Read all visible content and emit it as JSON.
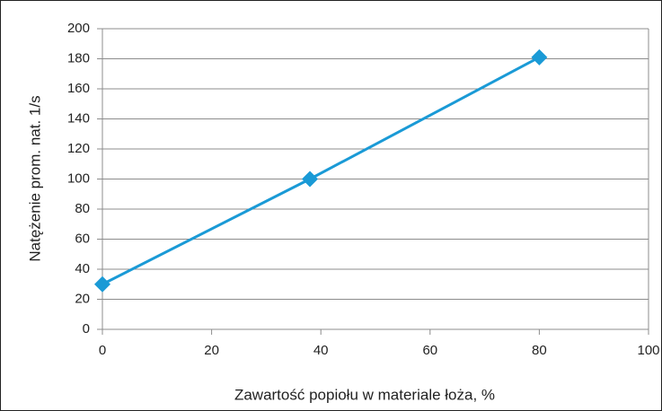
{
  "chart_data": {
    "type": "line",
    "x_label": "Zawartość popiołu w materiale łoża, %",
    "y_label": "Natężenie prom. nat. 1/s",
    "x": [
      0,
      38,
      80
    ],
    "series": [
      {
        "color": "#1a9ad6",
        "values": [
          30,
          100,
          181
        ]
      }
    ],
    "xlim": [
      0,
      100
    ],
    "xticks": [
      0,
      20,
      40,
      60,
      80,
      100
    ],
    "ylim": [
      0,
      200
    ],
    "yticks": [
      0,
      20,
      40,
      60,
      80,
      100,
      120,
      140,
      160,
      180,
      200
    ],
    "grid": true
  }
}
